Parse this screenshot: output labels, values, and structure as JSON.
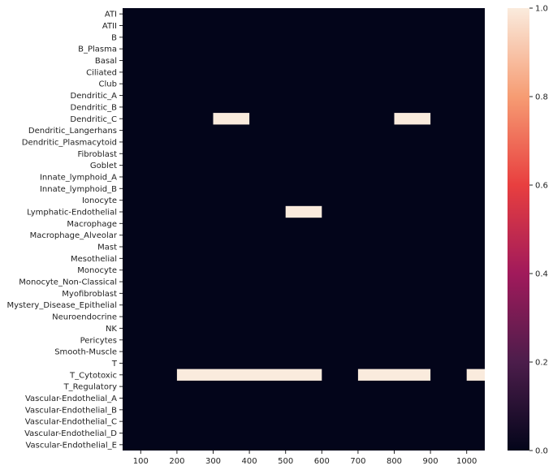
{
  "chart_data": {
    "type": "heatmap",
    "title": "",
    "xlabel": "",
    "ylabel": "",
    "x_range": [
      50,
      1050
    ],
    "x_ticks": [
      100,
      200,
      300,
      400,
      500,
      600,
      700,
      800,
      900,
      1000
    ],
    "x_tick_labels": [
      "100",
      "200",
      "300",
      "400",
      "500",
      "600",
      "700",
      "800",
      "900",
      "1000"
    ],
    "cell_width": 100,
    "rows": [
      "ATI",
      "ATII",
      "B",
      "B_Plasma",
      "Basal",
      "Ciliated",
      "Club",
      "Dendritic_A",
      "Dendritic_B",
      "Dendritic_C",
      "Dendritic_Langerhans",
      "Dendritic_Plasmacytoid",
      "Fibroblast",
      "Goblet",
      "Innate_lymphoid_A",
      "Innate_lymphoid_B",
      "Ionocyte",
      "Lymphatic-Endothelial",
      "Macrophage",
      "Macrophage_Alveolar",
      "Mast",
      "Mesothelial",
      "Monocyte",
      "Monocyte_Non-Classical",
      "Myofibroblast",
      "Mystery_Disease_Epithelial",
      "Neuroendocrine",
      "NK",
      "Pericytes",
      "Smooth-Muscle",
      "T",
      "T_Cytotoxic",
      "T_Regulatory",
      "Vascular-Endothelial_A",
      "Vascular-Endothelial_B",
      "Vascular-Endothelial_C",
      "Vascular-Endothelial_D",
      "Vascular-Endothelial_E"
    ],
    "segments": [
      {
        "row": "Dendritic_C",
        "x_start": 300,
        "x_end": 400,
        "value": 1
      },
      {
        "row": "Dendritic_C",
        "x_start": 800,
        "x_end": 900,
        "value": 1
      },
      {
        "row": "Lymphatic-Endothelial",
        "x_start": 500,
        "x_end": 600,
        "value": 1
      },
      {
        "row": "T_Cytotoxic",
        "x_start": 200,
        "x_end": 600,
        "value": 1
      },
      {
        "row": "T_Cytotoxic",
        "x_start": 700,
        "x_end": 900,
        "value": 1
      },
      {
        "row": "T_Cytotoxic",
        "x_start": 1000,
        "x_end": 1050,
        "value": 1
      }
    ],
    "background_value": 0,
    "colorbar": {
      "range": [
        0,
        1
      ],
      "ticks": [
        0,
        0.2,
        0.4,
        0.6,
        0.8,
        1
      ],
      "tick_labels": [
        "0.0",
        "0.2",
        "0.4",
        "0.6",
        "0.8",
        "1.0"
      ],
      "colors": [
        "#03051a",
        "#4c1d4b",
        "#a11a5b",
        "#e83f3f",
        "#f69c73",
        "#faebdd"
      ]
    }
  }
}
